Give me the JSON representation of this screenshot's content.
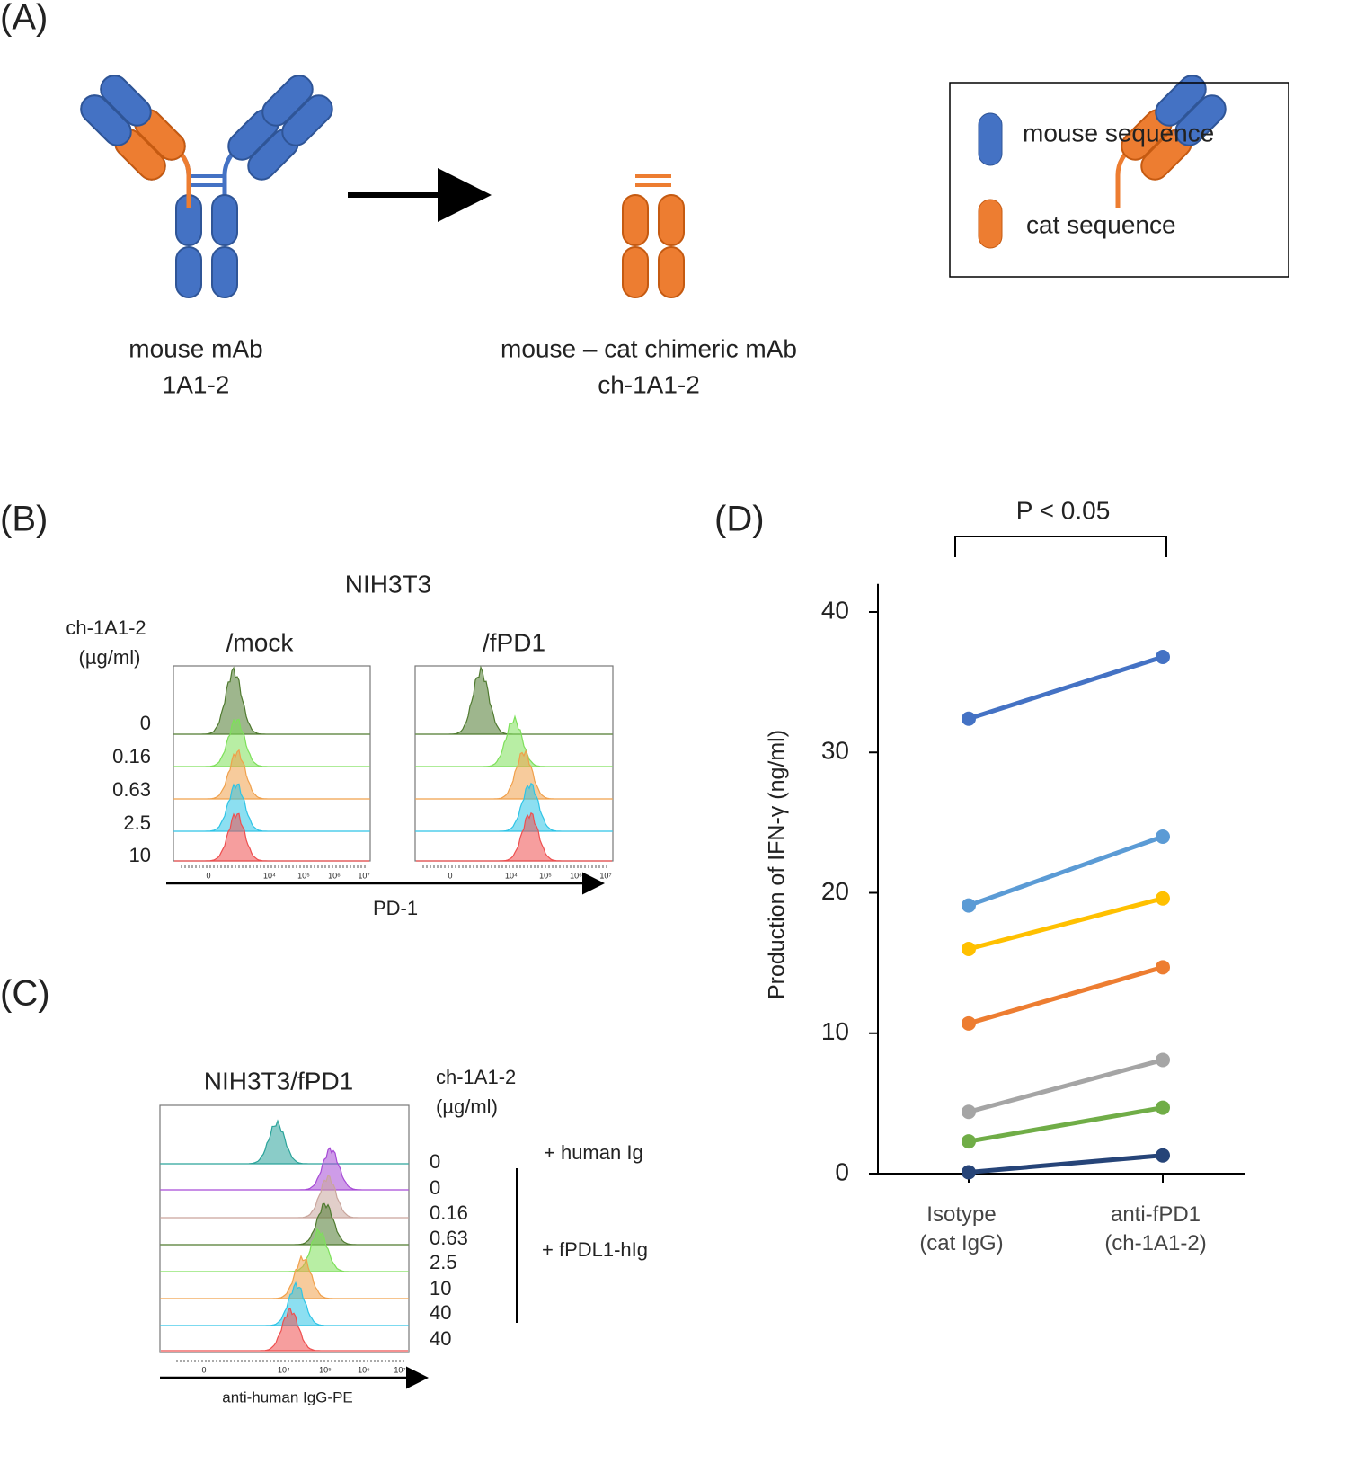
{
  "panel_a": {
    "label": "(A)",
    "source": {
      "name": "mouse mAb",
      "clone": "1A1-2"
    },
    "chimera": {
      "name": "mouse – cat chimeric mAb",
      "clone": "ch-1A1-2"
    },
    "legend": [
      "mouse sequence",
      "cat sequence"
    ],
    "colors": [
      "#4472c4",
      "#ed7d31"
    ]
  },
  "panel_b": {
    "label": "(B)",
    "title": "NIH3T3",
    "dose_label": [
      "ch-1A1-2",
      "(µg/ml)"
    ],
    "columns": [
      "/mock",
      "/fPD1"
    ],
    "doses": [
      "0",
      "0.16",
      "0.63",
      "2.5",
      "10"
    ],
    "colors": [
      "#4f7a2f",
      "#7de05a",
      "#f0a04b",
      "#2ec4e6",
      "#ee4f4f"
    ],
    "x_tick_labels": [
      "0",
      "10⁴",
      "10⁵",
      "10⁶",
      "10⁷"
    ],
    "x_label": "PD-1"
  },
  "panel_c": {
    "label": "(C)",
    "title": "NIH3T3/fPD1",
    "dose_label": [
      "ch-1A1-2",
      "(µg/ml)"
    ],
    "doses": [
      "0",
      "0",
      "0.16",
      "0.63",
      "2.5",
      "10",
      "40",
      "40"
    ],
    "colors": [
      "#2aa39a",
      "#a64ad6",
      "#c9a59c",
      "#4f7a2f",
      "#7de05a",
      "#f0a04b",
      "#2ec4e6",
      "#ee4f4f"
    ],
    "groups": [
      "+ human  Ig",
      "+ fPDL1-hIg"
    ],
    "x_tick_labels": [
      "0",
      "10⁴",
      "10⁵",
      "10⁶",
      "10⁷"
    ],
    "x_label": "anti-human IgG-PE"
  },
  "chart_data": {
    "type": "line",
    "panel_label": "(D)",
    "annotation": "P < 0.05",
    "categories": [
      "Isotype (cat IgG)",
      "anti-fPD1 (ch-1A1-2)"
    ],
    "ylabel": "Production of IFN-γ (ng/ml)",
    "ylim": [
      0,
      42
    ],
    "yticks": [
      0,
      10,
      20,
      30,
      40
    ],
    "series": [
      {
        "color": "#4472c4",
        "values": [
          32.4,
          36.8
        ]
      },
      {
        "color": "#5b9bd5",
        "values": [
          19.1,
          24.0
        ]
      },
      {
        "color": "#ffc000",
        "values": [
          16.0,
          19.6
        ]
      },
      {
        "color": "#ed7d31",
        "values": [
          10.7,
          14.7
        ]
      },
      {
        "color": "#a5a5a5",
        "values": [
          4.4,
          8.1
        ]
      },
      {
        "color": "#70ad47",
        "values": [
          2.3,
          4.7
        ]
      },
      {
        "color": "#264478",
        "values": [
          0.1,
          1.3
        ]
      }
    ]
  }
}
